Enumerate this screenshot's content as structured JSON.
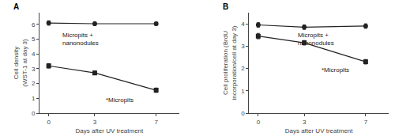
{
  "chart_data": [
    {
      "type": "line",
      "title": "A",
      "color": "#222222",
      "grid": false,
      "x": [
        0,
        3,
        7
      ],
      "series": [
        {
          "values": [
            6.1,
            6.05,
            6.05
          ],
          "yerr": [
            0.15,
            0.12,
            0.1
          ],
          "marker": "circle"
        },
        {
          "values": [
            3.2,
            2.72,
            1.55
          ],
          "yerr": [
            0.15,
            0.12,
            0.15
          ],
          "marker": "square"
        }
      ],
      "xlabel": "Days after UV treatment",
      "ylabel": "Cell density\n(WST-1 at day 3)",
      "xlim": [
        -0.6,
        8.5
      ],
      "xticks": [
        0,
        3,
        7
      ],
      "ylim": [
        0,
        6.8
      ],
      "yticks": [
        0,
        1,
        2,
        3,
        4,
        5,
        6
      ],
      "annotations": [
        {
          "text": "Micropits +\nnanonodules",
          "x": 0.8,
          "y": 5.6
        },
        {
          "text": "*Micropits",
          "x": 3.6,
          "y": 1.25
        }
      ]
    },
    {
      "type": "line",
      "title": "B",
      "color": "#222222",
      "grid": false,
      "x": [
        0,
        3,
        7
      ],
      "series": [
        {
          "values": [
            3.95,
            3.85,
            3.9
          ],
          "yerr": [
            0.1,
            0.1,
            0.1
          ],
          "marker": "circle"
        },
        {
          "values": [
            3.45,
            3.15,
            2.3
          ],
          "yerr": [
            0.12,
            0.1,
            0.1
          ],
          "marker": "square"
        }
      ],
      "xlabel": "Days after UV treatment",
      "ylabel": "Cell proliferation (BrdU\nincorporation/cell at day 3)",
      "xlim": [
        -0.6,
        8.5
      ],
      "xticks": [
        0,
        3,
        7
      ],
      "ylim": [
        0,
        4.5
      ],
      "yticks": [
        0,
        1,
        2,
        3,
        4
      ],
      "annotations": [
        {
          "text": "Micropits +\nnanonodules",
          "x": 2.5,
          "y": 3.72
        },
        {
          "text": "*Micropits",
          "x": 4.0,
          "y": 2.15
        }
      ]
    }
  ]
}
